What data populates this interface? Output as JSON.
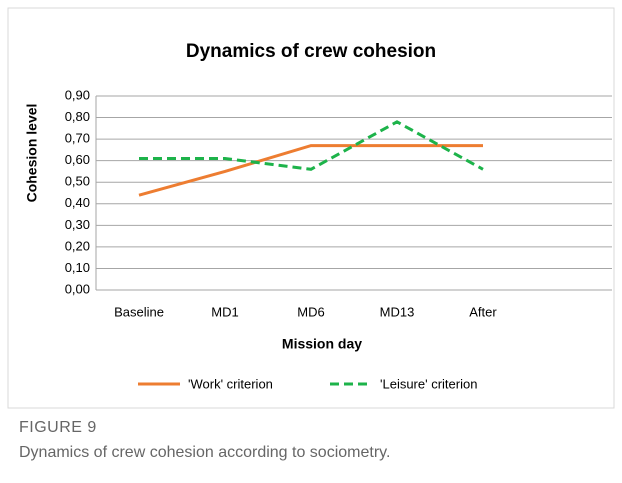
{
  "chart_data": {
    "type": "line",
    "title": "Dynamics of crew cohesion",
    "categories": [
      "Baseline",
      "MD1",
      "MD6",
      "MD13",
      "After",
      null
    ],
    "series": [
      {
        "name": "'Work' criterion",
        "color": "#ed7d31",
        "dash": false,
        "values": [
          0.44,
          0.55,
          0.67,
          0.67,
          0.67,
          null
        ]
      },
      {
        "name": "'Leisure' criterion",
        "color": "#1db34a",
        "dash": true,
        "values": [
          0.61,
          0.61,
          0.56,
          0.78,
          0.56,
          null
        ]
      }
    ],
    "xlabel": "Mission day",
    "ylabel": "Cohesion level",
    "ylim": [
      0,
      0.9
    ],
    "yticks": [
      {
        "value": 0,
        "label": "0,00"
      },
      {
        "value": 0.1,
        "label": "0,10"
      },
      {
        "value": 0.2,
        "label": "0,20"
      },
      {
        "value": 0.3,
        "label": "0,30"
      },
      {
        "value": 0.4,
        "label": "0,40"
      },
      {
        "value": 0.5,
        "label": "0,50"
      },
      {
        "value": 0.6,
        "label": "0,60"
      },
      {
        "value": 0.7,
        "label": "0,70"
      },
      {
        "value": 0.8,
        "label": "0,80"
      },
      {
        "value": 0.9,
        "label": "0,90"
      }
    ],
    "grid": true,
    "legend": "bottom"
  },
  "caption": {
    "label": "FIGURE 9",
    "text": "Dynamics of crew cohesion according to sociometry."
  }
}
